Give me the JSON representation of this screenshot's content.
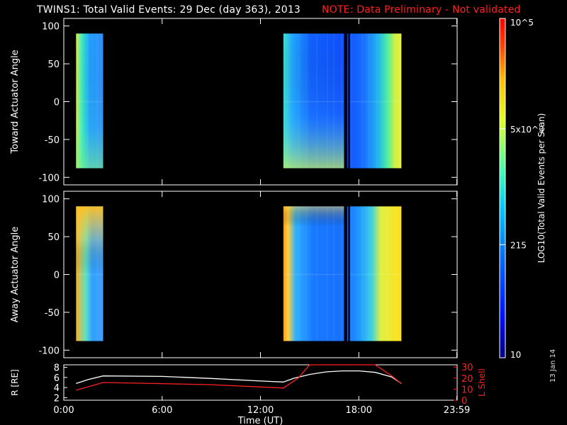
{
  "title": "TWINS1: Total Valid Events: 29 Dec (day 363), 2013",
  "note": "NOTE: Data Preliminary - Not validated",
  "stamp": "13 Jan 14",
  "colors": {
    "note": "#ff2020",
    "r_line": "#ffffff",
    "lshell_line": "#ff2020",
    "axis": "#ffffff",
    "background": "#000000"
  },
  "chart_data": [
    {
      "type": "heatmap",
      "name": "toward-panel",
      "ylabel": "Toward Actuator Angle",
      "ylim": [
        -110,
        110
      ],
      "yticks": [
        "100",
        "50",
        "0",
        "-50",
        "-100"
      ],
      "angle_range": [
        -88,
        90
      ],
      "blocks": [
        {
          "t_start": 0.75,
          "t_end": 2.4,
          "level": "mid-low-with-bright-edges"
        },
        {
          "t_start": 13.4,
          "t_end": 17.1,
          "level": "low-with-bright-bottom-left"
        },
        {
          "t_start": 17.3,
          "t_end": 20.6,
          "level": "low-rising-to-high-at-end"
        }
      ]
    },
    {
      "type": "heatmap",
      "name": "away-panel",
      "ylabel": "Away Actuator Angle",
      "ylim": [
        -110,
        110
      ],
      "yticks": [
        "100",
        "50",
        "0",
        "-50",
        "-100"
      ],
      "angle_range": [
        -88,
        90
      ],
      "blocks": [
        {
          "t_start": 0.75,
          "t_end": 2.4,
          "level": "high-top-mid-body"
        },
        {
          "t_start": 13.4,
          "t_end": 17.1,
          "level": "high-left-edge-mid-body"
        },
        {
          "t_start": 17.3,
          "t_end": 20.6,
          "level": "mid-rising-to-high-at-end"
        }
      ]
    },
    {
      "type": "line",
      "name": "orbit-panel",
      "xlabel": "Time (UT)",
      "xlim": [
        0,
        24
      ],
      "xticks": [
        "0:00",
        "6:00",
        "12:00",
        "18:00",
        "23:59"
      ],
      "xtick_values": [
        0,
        6,
        12,
        18,
        23.98
      ],
      "ylabel_left": "R [RE]",
      "ylim_left": [
        1.5,
        8.5
      ],
      "yticks_left": [
        "8",
        "6",
        "4",
        "2"
      ],
      "ylabel_right": "L Shell",
      "ylim_right": [
        0,
        32
      ],
      "yticks_right": [
        "30",
        "20",
        "10",
        "0"
      ],
      "series": [
        {
          "name": "R",
          "axis": "left",
          "x": [
            0.75,
            1.5,
            2.4,
            6,
            9,
            12,
            13.4,
            14,
            15,
            16,
            17,
            18,
            19,
            20,
            20.6
          ],
          "y": [
            4.8,
            5.6,
            6.3,
            6.2,
            5.8,
            5.3,
            5.1,
            5.8,
            6.6,
            7.1,
            7.3,
            7.3,
            7.0,
            6.1,
            4.8
          ]
        },
        {
          "name": "L Shell",
          "axis": "right",
          "x": [
            0.75,
            2.4,
            6,
            9,
            12,
            13.4,
            14.3,
            15,
            19,
            20,
            20.6
          ],
          "y": [
            9,
            16,
            15,
            14,
            12,
            11,
            20,
            32,
            32,
            22,
            15
          ]
        }
      ]
    },
    {
      "type": "colorbar",
      "name": "colorbar",
      "label": "LOG10(Total Valid Events per Scan)",
      "range": [
        10,
        100000
      ],
      "ticks": [
        "10",
        "215",
        "5x10^3",
        "10^5"
      ],
      "tick_values": [
        10,
        215,
        5000,
        100000
      ]
    }
  ]
}
